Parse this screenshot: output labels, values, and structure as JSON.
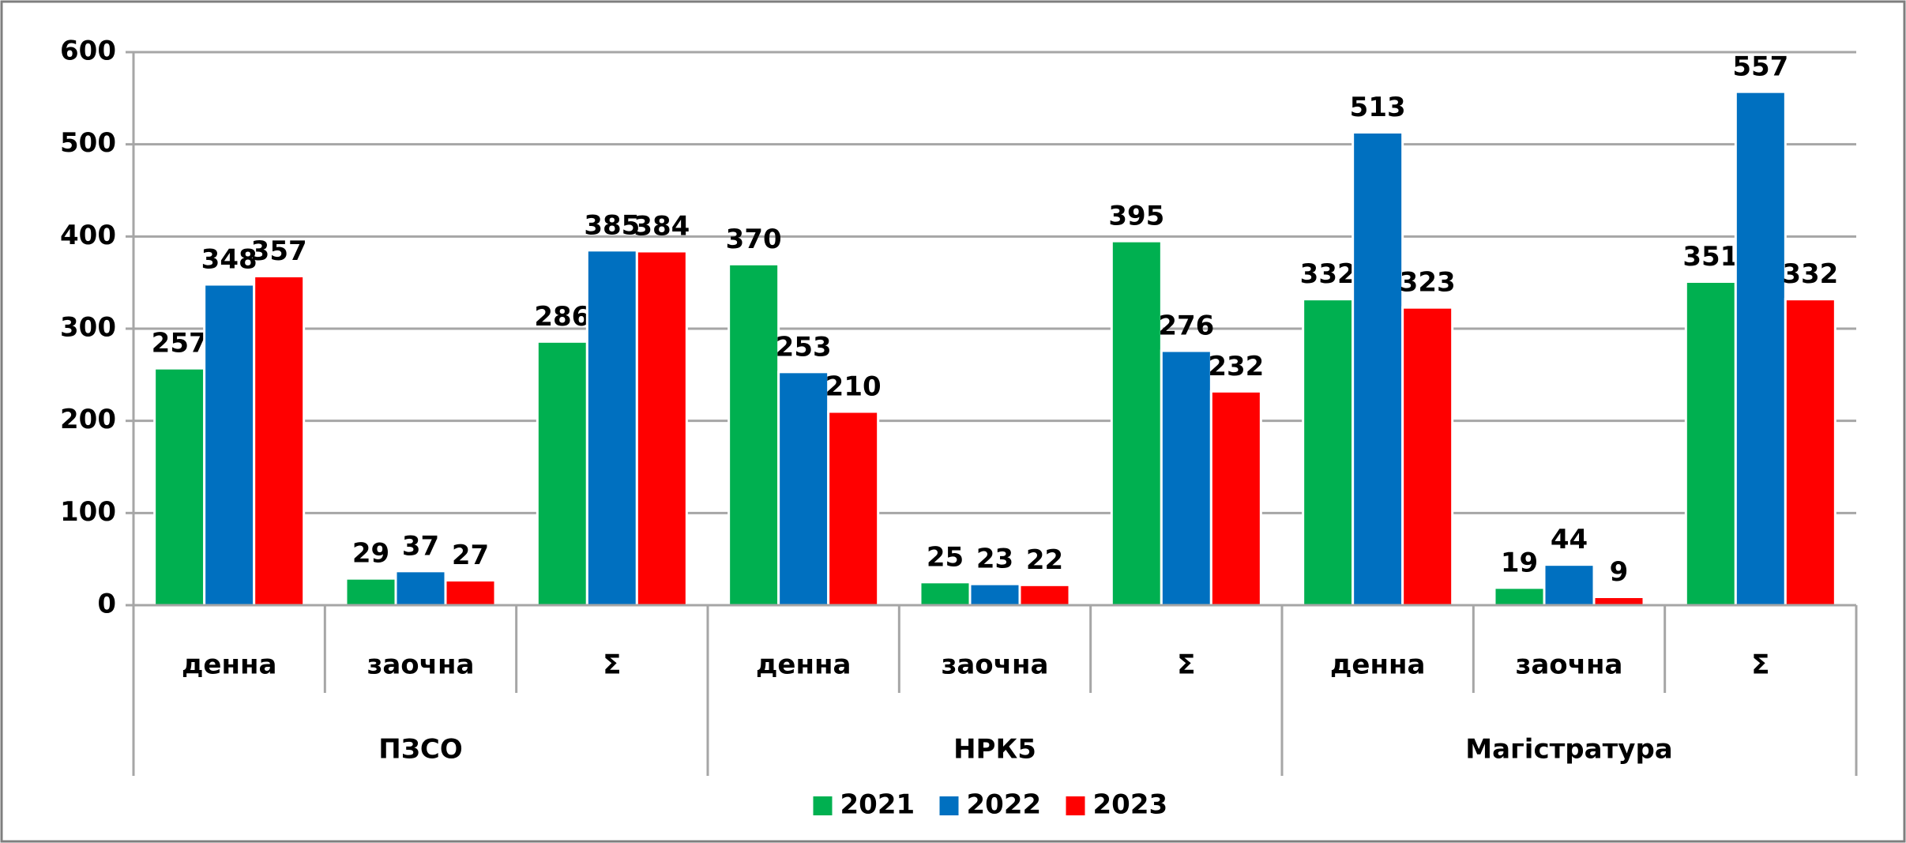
{
  "chart_data": {
    "type": "bar",
    "categories": [
      "денна",
      "заочна",
      "Σ",
      "денна",
      "заочна",
      "Σ",
      "денна",
      "заочна",
      "Σ"
    ],
    "category_groups": [
      "ПЗСО",
      "НРК5",
      "Магістратура"
    ],
    "series": [
      {
        "name": "2021",
        "color": "#00b050",
        "values": [
          257,
          29,
          286,
          370,
          25,
          395,
          332,
          19,
          351
        ]
      },
      {
        "name": "2022",
        "color": "#0070c0",
        "values": [
          348,
          37,
          385,
          253,
          23,
          276,
          513,
          44,
          557
        ]
      },
      {
        "name": "2023",
        "color": "#ff0000",
        "values": [
          357,
          27,
          384,
          210,
          22,
          232,
          323,
          9,
          332
        ]
      }
    ],
    "ylim": [
      0,
      600
    ],
    "yticks": [
      0,
      100,
      200,
      300,
      400,
      500,
      600
    ],
    "grid": true,
    "legend": "bottom"
  }
}
